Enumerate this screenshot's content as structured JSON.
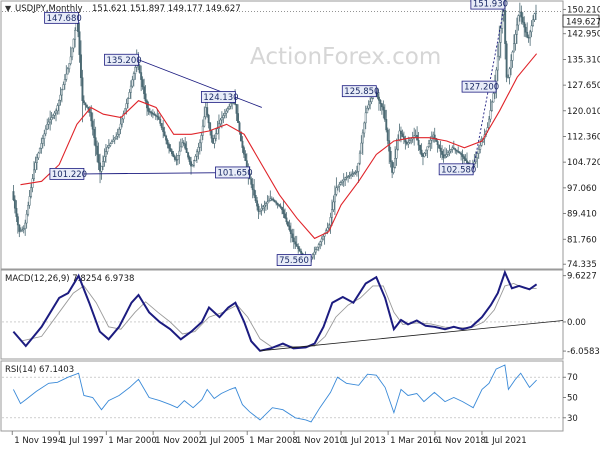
{
  "header": {
    "symbol_line": "USDJPY,Monthly",
    "ohlc": "151.621 151.897 149.177 149.627",
    "current_price": "149.627"
  },
  "watermark": "ActionForex.com",
  "colors": {
    "candle": "#4a6872",
    "ma": "#e0242a",
    "macd": "#1c1c80",
    "signal": "#9a9a9a",
    "rsi": "#3a8ad8",
    "trendline": "#1c1c80",
    "label_fill": "#e8ecf8",
    "label_border": "#1c1c80",
    "current_bg": "#ffffff"
  },
  "chart_data": [
    {
      "type": "candlestick",
      "panel": "price",
      "x_ticks": [
        "1 Nov 1994",
        "1 Jul 1997",
        "1 Mar 2000",
        "1 Nov 2002",
        "1 Jul 2005",
        "1 Mar 2008",
        "1 Nov 2010",
        "1 Jul 2013",
        "1 Mar 2016",
        "1 Nov 2018",
        "1 Jul 2021"
      ],
      "x_tick_years": [
        1994.83,
        1997.5,
        2000.17,
        2002.83,
        2005.5,
        2008.17,
        2010.83,
        2013.5,
        2016.17,
        2018.83,
        2021.5
      ],
      "x_range": [
        1994.25,
        2026.1
      ],
      "y_ticks": [
        "150.210",
        "142.950",
        "135.310",
        "127.650",
        "120.010",
        "112.360",
        "104.720",
        "97.060",
        "89.410",
        "81.760",
        "74.335"
      ],
      "ylim": [
        73.2,
        152.4
      ],
      "price_path": [
        [
          1994.9,
          96
        ],
        [
          1995.3,
          84
        ],
        [
          1995.6,
          85
        ],
        [
          1996.2,
          104
        ],
        [
          1996.9,
          116
        ],
        [
          1997.4,
          120
        ],
        [
          1998.2,
          135
        ],
        [
          1998.6,
          147.68
        ],
        [
          1998.9,
          123
        ],
        [
          1999.3,
          120
        ],
        [
          1999.9,
          102
        ],
        [
          2000.3,
          109
        ],
        [
          2000.9,
          113
        ],
        [
          2001.5,
          124
        ],
        [
          2002.0,
          135.2
        ],
        [
          2002.6,
          120
        ],
        [
          2003.2,
          118
        ],
        [
          2003.8,
          109
        ],
        [
          2004.2,
          105
        ],
        [
          2004.6,
          111
        ],
        [
          2005.1,
          103
        ],
        [
          2005.6,
          111
        ],
        [
          2005.9,
          121
        ],
        [
          2006.3,
          110
        ],
        [
          2006.7,
          117
        ],
        [
          2007.2,
          121
        ],
        [
          2007.5,
          124.13
        ],
        [
          2007.9,
          111
        ],
        [
          2008.3,
          101.65
        ],
        [
          2008.9,
          90
        ],
        [
          2009.6,
          94
        ],
        [
          2010.2,
          91
        ],
        [
          2010.9,
          81
        ],
        [
          2011.5,
          76
        ],
        [
          2011.8,
          75.56
        ],
        [
          2012.3,
          80
        ],
        [
          2012.9,
          86
        ],
        [
          2013.3,
          97
        ],
        [
          2013.8,
          100
        ],
        [
          2014.5,
          102
        ],
        [
          2015.0,
          120
        ],
        [
          2015.5,
          125.85
        ],
        [
          2016.0,
          120
        ],
        [
          2016.5,
          101
        ],
        [
          2016.9,
          114
        ],
        [
          2017.3,
          110
        ],
        [
          2017.8,
          113
        ],
        [
          2018.2,
          106
        ],
        [
          2018.8,
          113
        ],
        [
          2019.4,
          106
        ],
        [
          2019.9,
          109
        ],
        [
          2020.4,
          107
        ],
        [
          2020.8,
          104
        ],
        [
          2021.0,
          102.58
        ],
        [
          2021.5,
          110
        ],
        [
          2021.9,
          115
        ],
        [
          2022.3,
          127.2
        ],
        [
          2022.8,
          151.93
        ],
        [
          2023.0,
          128
        ],
        [
          2023.4,
          140
        ],
        [
          2023.7,
          150
        ],
        [
          2024.2,
          141
        ],
        [
          2024.6,
          149.627
        ]
      ],
      "ma_path": [
        [
          1995.3,
          98
        ],
        [
          1996.5,
          99
        ],
        [
          1997.5,
          104
        ],
        [
          1998.5,
          116
        ],
        [
          1999.3,
          121
        ],
        [
          2000.0,
          119
        ],
        [
          2001.0,
          118
        ],
        [
          2002.0,
          123
        ],
        [
          2003.0,
          121
        ],
        [
          2004.0,
          113
        ],
        [
          2005.0,
          113
        ],
        [
          2006.0,
          114
        ],
        [
          2007.0,
          116
        ],
        [
          2008.0,
          113
        ],
        [
          2009.0,
          104
        ],
        [
          2010.0,
          95
        ],
        [
          2011.0,
          88
        ],
        [
          2012.0,
          82
        ],
        [
          2012.8,
          84
        ],
        [
          2013.5,
          92
        ],
        [
          2014.5,
          99
        ],
        [
          2015.5,
          107
        ],
        [
          2016.5,
          111
        ],
        [
          2017.5,
          112
        ],
        [
          2018.5,
          112
        ],
        [
          2019.5,
          111
        ],
        [
          2020.5,
          109
        ],
        [
          2021.5,
          111
        ],
        [
          2022.5,
          120
        ],
        [
          2023.5,
          130
        ],
        [
          2024.6,
          137
        ]
      ],
      "price_labels": [
        {
          "text": "147.680",
          "x": 1998.6,
          "y": 147.68,
          "anchor": "end"
        },
        {
          "text": "135.200",
          "x": 2002.0,
          "y": 135.2,
          "anchor": "end"
        },
        {
          "text": "124.130",
          "x": 2007.5,
          "y": 124.13,
          "anchor": "end"
        },
        {
          "text": "101.220",
          "x": 1998.9,
          "y": 101.22,
          "anchor": "end"
        },
        {
          "text": "101.650",
          "x": 2008.3,
          "y": 101.65,
          "anchor": "end"
        },
        {
          "text": "75.560",
          "x": 2011.8,
          "y": 75.56,
          "anchor": "end"
        },
        {
          "text": "125.850",
          "x": 2015.5,
          "y": 125.85,
          "anchor": "end"
        },
        {
          "text": "102.580",
          "x": 2021.0,
          "y": 102.58,
          "anchor": "end"
        },
        {
          "text": "127.200",
          "x": 2022.3,
          "y": 127.2,
          "anchor": "end"
        },
        {
          "text": "151.930",
          "x": 2022.8,
          "y": 151.93,
          "anchor": "end"
        }
      ],
      "trendlines": [
        {
          "from": [
            1998.9,
            101.22
          ],
          "to": [
            2008.3,
            101.65
          ],
          "style": "solid"
        },
        {
          "from": [
            2002.0,
            135.2
          ],
          "to": [
            2009.0,
            121.0
          ],
          "style": "solid"
        },
        {
          "from": [
            2021.0,
            102.58
          ],
          "to": [
            2022.8,
            151.93
          ],
          "style": "dotted"
        }
      ],
      "horizontal_lines": [
        {
          "y": 149.627,
          "style": "dotted"
        }
      ]
    },
    {
      "type": "line",
      "panel": "macd",
      "indicator_label": "MACD(12,26,9) 7.8254 6.9738",
      "y_ticks": [
        "9.6227",
        "0.00",
        "-6.0583"
      ],
      "ylim": [
        -7.5,
        10.6
      ],
      "macd_path": [
        [
          1994.9,
          -2
        ],
        [
          1995.6,
          -5
        ],
        [
          1996.5,
          -1
        ],
        [
          1997.5,
          5
        ],
        [
          1998.0,
          6
        ],
        [
          1998.6,
          9.6
        ],
        [
          1999.2,
          4
        ],
        [
          1999.8,
          -2
        ],
        [
          2000.3,
          -3.6
        ],
        [
          2000.9,
          -1
        ],
        [
          2001.6,
          4
        ],
        [
          2002.0,
          5.6
        ],
        [
          2002.6,
          2
        ],
        [
          2003.2,
          0
        ],
        [
          2003.8,
          -1.5
        ],
        [
          2004.4,
          -3.6
        ],
        [
          2005.0,
          -2
        ],
        [
          2005.6,
          0
        ],
        [
          2006.0,
          3
        ],
        [
          2006.6,
          1
        ],
        [
          2007.1,
          3
        ],
        [
          2007.5,
          4
        ],
        [
          2008.0,
          0
        ],
        [
          2008.4,
          -4
        ],
        [
          2008.9,
          -6
        ],
        [
          2009.5,
          -5.5
        ],
        [
          2010.2,
          -4.5
        ],
        [
          2010.8,
          -5.5
        ],
        [
          2011.5,
          -5.3
        ],
        [
          2012.0,
          -4.5
        ],
        [
          2012.5,
          -1
        ],
        [
          2013.0,
          4
        ],
        [
          2013.6,
          5.2
        ],
        [
          2014.2,
          4
        ],
        [
          2014.9,
          8
        ],
        [
          2015.5,
          9.3
        ],
        [
          2016.0,
          5
        ],
        [
          2016.5,
          -1.5
        ],
        [
          2016.9,
          0.4
        ],
        [
          2017.3,
          -0.5
        ],
        [
          2017.8,
          0.3
        ],
        [
          2018.3,
          -0.8
        ],
        [
          2018.8,
          -1
        ],
        [
          2019.4,
          -1.5
        ],
        [
          2019.9,
          -1
        ],
        [
          2020.4,
          -1.5
        ],
        [
          2020.9,
          -1
        ],
        [
          2021.5,
          1
        ],
        [
          2022.0,
          3.5
        ],
        [
          2022.4,
          6
        ],
        [
          2022.8,
          10.3
        ],
        [
          2023.2,
          7
        ],
        [
          2023.6,
          7.5
        ],
        [
          2024.2,
          6.8
        ],
        [
          2024.6,
          7.8254
        ]
      ],
      "signal_path": [
        [
          1995.3,
          -4
        ],
        [
          1996.5,
          -3
        ],
        [
          1997.5,
          2
        ],
        [
          1998.3,
          6
        ],
        [
          1998.9,
          7.5
        ],
        [
          1999.6,
          4
        ],
        [
          2000.3,
          -1
        ],
        [
          2001.0,
          -1.5
        ],
        [
          2001.8,
          2
        ],
        [
          2002.4,
          4.2
        ],
        [
          2003.1,
          2
        ],
        [
          2003.8,
          0
        ],
        [
          2004.5,
          -2.5
        ],
        [
          2005.2,
          -2
        ],
        [
          2006.0,
          1
        ],
        [
          2006.8,
          2
        ],
        [
          2007.6,
          3.5
        ],
        [
          2008.2,
          1
        ],
        [
          2008.9,
          -3.5
        ],
        [
          2009.6,
          -5.3
        ],
        [
          2010.4,
          -5
        ],
        [
          2011.2,
          -5.2
        ],
        [
          2012.0,
          -5
        ],
        [
          2012.6,
          -3
        ],
        [
          2013.2,
          1
        ],
        [
          2013.9,
          3.5
        ],
        [
          2014.6,
          5
        ],
        [
          2015.3,
          7.5
        ],
        [
          2015.9,
          7.5
        ],
        [
          2016.5,
          2
        ],
        [
          2017.0,
          -0.5
        ],
        [
          2017.8,
          -0.2
        ],
        [
          2018.6,
          -0.4
        ],
        [
          2019.4,
          -1.1
        ],
        [
          2020.2,
          -1.2
        ],
        [
          2020.9,
          -1.2
        ],
        [
          2021.6,
          0
        ],
        [
          2022.2,
          2.5
        ],
        [
          2022.8,
          7.5
        ],
        [
          2023.3,
          8
        ],
        [
          2023.9,
          7
        ],
        [
          2024.6,
          6.9738
        ]
      ],
      "trendline": {
        "from": [
          2008.9,
          -6.0
        ],
        "to": [
          2026.1,
          0.3
        ]
      }
    },
    {
      "type": "line",
      "panel": "rsi",
      "indicator_label": "RSI(14) 67.1403",
      "y_ticks": [
        "70",
        "50",
        "30"
      ],
      "ylim": [
        18,
        85
      ],
      "reference_lines": [
        70,
        30
      ],
      "rsi_path": [
        [
          1994.9,
          58
        ],
        [
          1995.3,
          44
        ],
        [
          1995.6,
          48
        ],
        [
          1996.2,
          56
        ],
        [
          1996.9,
          64
        ],
        [
          1997.4,
          65
        ],
        [
          1998.0,
          70
        ],
        [
          1998.6,
          74
        ],
        [
          1998.9,
          52
        ],
        [
          1999.4,
          50
        ],
        [
          1999.9,
          38
        ],
        [
          2000.3,
          47
        ],
        [
          2000.9,
          52
        ],
        [
          2001.5,
          60
        ],
        [
          2002.0,
          68
        ],
        [
          2002.6,
          50
        ],
        [
          2003.2,
          47
        ],
        [
          2003.8,
          43
        ],
        [
          2004.2,
          40
        ],
        [
          2004.6,
          47
        ],
        [
          2005.1,
          40
        ],
        [
          2005.6,
          48
        ],
        [
          2005.9,
          58
        ],
        [
          2006.3,
          49
        ],
        [
          2006.7,
          54
        ],
        [
          2007.2,
          58
        ],
        [
          2007.5,
          60
        ],
        [
          2007.9,
          43
        ],
        [
          2008.3,
          36
        ],
        [
          2008.9,
          28
        ],
        [
          2009.6,
          40
        ],
        [
          2010.2,
          38
        ],
        [
          2010.9,
          30
        ],
        [
          2011.5,
          28
        ],
        [
          2011.8,
          26
        ],
        [
          2012.3,
          40
        ],
        [
          2012.9,
          55
        ],
        [
          2013.3,
          70
        ],
        [
          2013.8,
          64
        ],
        [
          2014.5,
          62
        ],
        [
          2015.0,
          73
        ],
        [
          2015.5,
          72
        ],
        [
          2016.0,
          60
        ],
        [
          2016.5,
          35
        ],
        [
          2016.9,
          58
        ],
        [
          2017.3,
          52
        ],
        [
          2017.8,
          54
        ],
        [
          2018.2,
          46
        ],
        [
          2018.8,
          55
        ],
        [
          2019.4,
          46
        ],
        [
          2019.9,
          50
        ],
        [
          2020.4,
          46
        ],
        [
          2020.8,
          42
        ],
        [
          2021.0,
          40
        ],
        [
          2021.5,
          58
        ],
        [
          2021.9,
          64
        ],
        [
          2022.3,
          78
        ],
        [
          2022.8,
          82
        ],
        [
          2023.0,
          58
        ],
        [
          2023.4,
          68
        ],
        [
          2023.7,
          74
        ],
        [
          2024.2,
          60
        ],
        [
          2024.6,
          67.1403
        ]
      ]
    }
  ]
}
